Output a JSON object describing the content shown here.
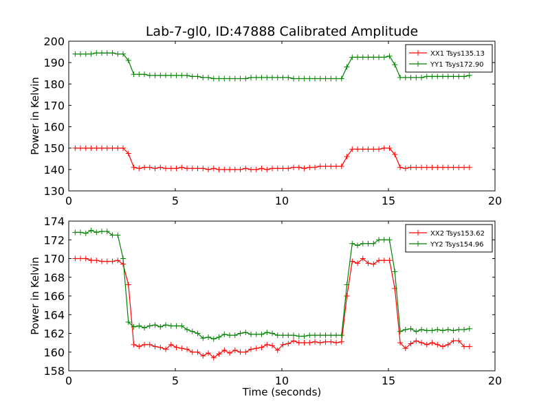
{
  "chart_data": [
    {
      "type": "line",
      "title": "Lab-7-gl0, ID:47888 Calibrated Amplitude",
      "xlabel": "",
      "ylabel": "Power in Kelvin",
      "xlim": [
        0,
        20
      ],
      "ylim": [
        130,
        200
      ],
      "xticks": [
        "0",
        "5",
        "10",
        "15",
        "20"
      ],
      "yticks": [
        "130",
        "140",
        "150",
        "160",
        "170",
        "180",
        "190",
        "200"
      ],
      "grid": false,
      "legend_position": "top-right",
      "series": [
        {
          "name": "XX1 Tsys135.13",
          "color": "#ff0000",
          "marker": "+",
          "x": [
            0.3,
            0.55,
            0.8,
            1.05,
            1.3,
            1.55,
            1.8,
            2.05,
            2.3,
            2.55,
            2.8,
            3.05,
            3.3,
            3.55,
            3.8,
            4.05,
            4.3,
            4.55,
            4.8,
            5.05,
            5.3,
            5.55,
            5.8,
            6.05,
            6.3,
            6.55,
            6.8,
            7.05,
            7.3,
            7.55,
            7.8,
            8.05,
            8.3,
            8.55,
            8.8,
            9.05,
            9.3,
            9.55,
            9.8,
            10.05,
            10.3,
            10.55,
            10.8,
            11.05,
            11.3,
            11.55,
            11.8,
            12.05,
            12.3,
            12.55,
            12.8,
            13.05,
            13.3,
            13.55,
            13.8,
            14.05,
            14.3,
            14.55,
            14.8,
            15.05,
            15.3,
            15.55,
            15.8,
            16.05,
            16.3,
            16.55,
            16.8,
            17.05,
            17.3,
            17.55,
            17.8,
            18.05,
            18.3,
            18.55,
            18.8
          ],
          "values": [
            150,
            150,
            150,
            150,
            150,
            150,
            150,
            150,
            150,
            150,
            147.5,
            141,
            140.5,
            141,
            141,
            140.5,
            141,
            140.5,
            140.5,
            140.5,
            141,
            140.5,
            140.5,
            140.5,
            140.5,
            140,
            140.5,
            140,
            140,
            140,
            140,
            140,
            140.5,
            140,
            140,
            140.5,
            140,
            140.5,
            140.5,
            140.5,
            140.5,
            141,
            141,
            140.5,
            141,
            141,
            141.5,
            141.5,
            141.5,
            141.5,
            141.5,
            146,
            149.5,
            149.5,
            149.5,
            149.5,
            149.5,
            149.5,
            150,
            150,
            147,
            141,
            140.5,
            141,
            141,
            141,
            141,
            141,
            141,
            141,
            141,
            141,
            141,
            141,
            141
          ]
        },
        {
          "name": "YY1 Tsys172.90",
          "color": "#008000",
          "marker": "+",
          "x": [
            0.3,
            0.55,
            0.8,
            1.05,
            1.3,
            1.55,
            1.8,
            2.05,
            2.3,
            2.55,
            2.8,
            3.05,
            3.3,
            3.55,
            3.8,
            4.05,
            4.3,
            4.55,
            4.8,
            5.05,
            5.3,
            5.55,
            5.8,
            6.05,
            6.3,
            6.55,
            6.8,
            7.05,
            7.3,
            7.55,
            7.8,
            8.05,
            8.3,
            8.55,
            8.8,
            9.05,
            9.3,
            9.55,
            9.8,
            10.05,
            10.3,
            10.55,
            10.8,
            11.05,
            11.3,
            11.55,
            11.8,
            12.05,
            12.3,
            12.55,
            12.8,
            13.05,
            13.3,
            13.55,
            13.8,
            14.05,
            14.3,
            14.55,
            14.8,
            15.05,
            15.3,
            15.55,
            15.8,
            16.05,
            16.3,
            16.55,
            16.8,
            17.05,
            17.3,
            17.55,
            17.8,
            18.05,
            18.3,
            18.55,
            18.8
          ],
          "values": [
            194,
            194,
            194,
            194,
            194.5,
            194.5,
            194.5,
            194.5,
            194,
            194,
            191,
            184.5,
            184.5,
            184.5,
            184,
            184,
            184,
            184,
            184,
            184,
            184,
            184,
            183.5,
            183.5,
            183,
            183,
            182.5,
            182.5,
            182.5,
            182.5,
            182.5,
            182.5,
            182.5,
            183,
            183,
            183,
            183,
            183,
            183,
            183,
            183,
            182.5,
            182.5,
            182.5,
            182.5,
            182.5,
            182.5,
            182.5,
            182.5,
            182.5,
            182.5,
            188,
            192.5,
            192.5,
            192.5,
            192.5,
            192.5,
            192.5,
            192.5,
            193,
            189,
            183,
            183,
            183,
            183,
            183,
            183.5,
            183.5,
            183.5,
            183.5,
            183.5,
            183.5,
            183.5,
            183.5,
            184
          ]
        }
      ]
    },
    {
      "type": "line",
      "title": "",
      "xlabel": "Time (seconds)",
      "ylabel": "Power in Kelvin",
      "xlim": [
        0,
        20
      ],
      "ylim": [
        158,
        174
      ],
      "xticks": [
        "0",
        "5",
        "10",
        "15",
        "20"
      ],
      "yticks": [
        "158",
        "160",
        "162",
        "164",
        "166",
        "168",
        "170",
        "172",
        "174"
      ],
      "grid": false,
      "legend_position": "top-right",
      "series": [
        {
          "name": "XX2 Tsys153.62",
          "color": "#ff0000",
          "marker": "+",
          "x": [
            0.3,
            0.55,
            0.8,
            1.05,
            1.3,
            1.55,
            1.8,
            2.05,
            2.3,
            2.55,
            2.8,
            3.05,
            3.3,
            3.55,
            3.8,
            4.05,
            4.3,
            4.55,
            4.8,
            5.05,
            5.3,
            5.55,
            5.8,
            6.05,
            6.3,
            6.55,
            6.8,
            7.05,
            7.3,
            7.55,
            7.8,
            8.05,
            8.3,
            8.55,
            8.8,
            9.05,
            9.3,
            9.55,
            9.8,
            10.05,
            10.3,
            10.55,
            10.8,
            11.05,
            11.3,
            11.55,
            11.8,
            12.05,
            12.3,
            12.55,
            12.8,
            13.05,
            13.3,
            13.55,
            13.8,
            14.05,
            14.3,
            14.55,
            14.8,
            15.05,
            15.3,
            15.55,
            15.8,
            16.05,
            16.3,
            16.55,
            16.8,
            17.05,
            17.3,
            17.55,
            17.8,
            18.05,
            18.3,
            18.55,
            18.8
          ],
          "values": [
            170,
            170,
            170,
            169.8,
            169.8,
            169.7,
            169.7,
            169.7,
            169.8,
            169.4,
            167.2,
            160.8,
            160.6,
            160.8,
            160.8,
            160.6,
            160.5,
            160.3,
            160.8,
            160.5,
            160.4,
            160.3,
            160,
            160,
            159.6,
            159.9,
            159.4,
            159.8,
            160.2,
            159.9,
            160.2,
            160,
            160,
            160.3,
            160.4,
            160.5,
            160.8,
            160.7,
            160.2,
            160.8,
            160.9,
            161.2,
            161,
            161,
            161,
            161.1,
            161,
            161.1,
            161.1,
            161,
            161.1,
            166,
            169.7,
            169.5,
            170,
            169.5,
            169.4,
            169.8,
            169.8,
            169.8,
            166.8,
            161,
            160.4,
            160.9,
            161.2,
            161,
            160.8,
            161,
            160.8,
            160.6,
            160.8,
            161.2,
            161.2,
            160.6,
            160.6
          ]
        },
        {
          "name": "YY2 Tsys154.96",
          "color": "#008000",
          "marker": "+",
          "x": [
            0.3,
            0.55,
            0.8,
            1.05,
            1.3,
            1.55,
            1.8,
            2.05,
            2.3,
            2.55,
            2.8,
            3.05,
            3.3,
            3.55,
            3.8,
            4.05,
            4.3,
            4.55,
            4.8,
            5.05,
            5.3,
            5.55,
            5.8,
            6.05,
            6.3,
            6.55,
            6.8,
            7.05,
            7.3,
            7.55,
            7.8,
            8.05,
            8.3,
            8.55,
            8.8,
            9.05,
            9.3,
            9.55,
            9.8,
            10.05,
            10.3,
            10.55,
            10.8,
            11.05,
            11.3,
            11.55,
            11.8,
            12.05,
            12.3,
            12.55,
            12.8,
            13.05,
            13.3,
            13.55,
            13.8,
            14.05,
            14.3,
            14.55,
            14.8,
            15.05,
            15.3,
            15.55,
            15.8,
            16.05,
            16.3,
            16.55,
            16.8,
            17.05,
            17.3,
            17.55,
            17.8,
            18.05,
            18.3,
            18.55,
            18.8
          ],
          "values": [
            172.8,
            172.8,
            172.7,
            173,
            172.8,
            172.9,
            172.9,
            172.5,
            172.5,
            170,
            163.2,
            162.7,
            162.8,
            162.6,
            162.8,
            162.9,
            162.7,
            162.9,
            162.8,
            162.8,
            162.8,
            162.4,
            162.2,
            162,
            161.5,
            161.6,
            161.4,
            161.6,
            161.9,
            161.8,
            161.8,
            162,
            162.1,
            161.9,
            161.9,
            161.9,
            162.1,
            162,
            161.8,
            161.8,
            161.8,
            161.8,
            161.7,
            161.7,
            161.8,
            161.8,
            161.8,
            161.8,
            161.8,
            161.8,
            161.8,
            167.2,
            171.6,
            171.4,
            171.6,
            171.6,
            171.6,
            172,
            172,
            172,
            168.6,
            162.2,
            162.4,
            162.5,
            162.2,
            162.4,
            162.3,
            162.3,
            162.4,
            162.3,
            162.4,
            162.3,
            162.4,
            162.4,
            162.5
          ]
        }
      ]
    }
  ]
}
